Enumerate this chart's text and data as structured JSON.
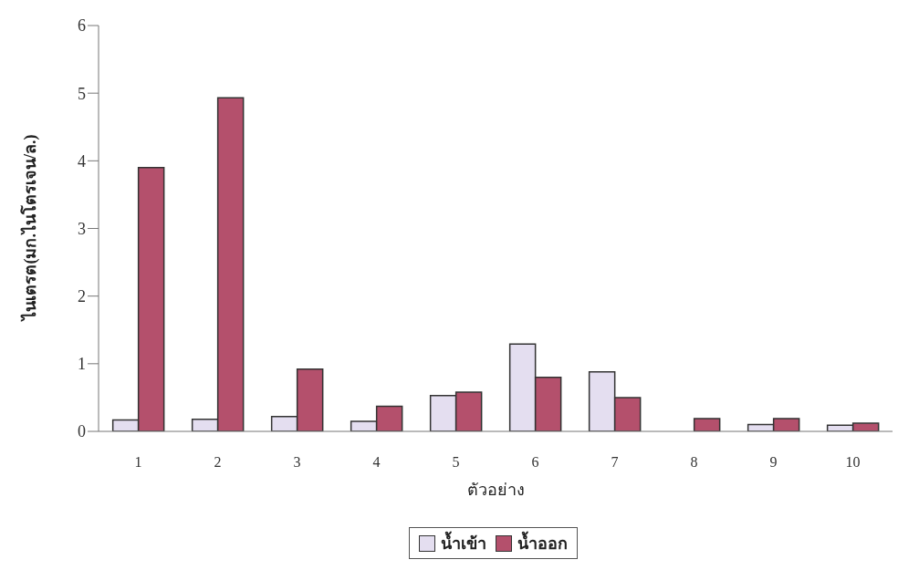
{
  "chart_data": {
    "type": "bar",
    "xlabel": "ตัวอย่าง",
    "ylabel": "ไนเตรต(มก.ไนโตรเจน/ล.)",
    "categories": [
      "1",
      "2",
      "3",
      "4",
      "5",
      "6",
      "7",
      "8",
      "9",
      "10"
    ],
    "series": [
      {
        "name": "น้ำเข้า",
        "color": "#e4def0",
        "values": [
          0.17,
          0.18,
          0.22,
          0.15,
          0.53,
          1.29,
          0.88,
          0,
          0.1,
          0.09
        ]
      },
      {
        "name": "น้ำออก",
        "color": "#b4506c",
        "values": [
          3.9,
          4.93,
          0.92,
          0.37,
          0.58,
          0.8,
          0.5,
          0.19,
          0.19,
          0.12
        ]
      }
    ],
    "ylim": [
      0,
      6
    ],
    "yticks": [
      0,
      1,
      2,
      3,
      4,
      5,
      6
    ],
    "grid": false,
    "legend": "bottom"
  }
}
